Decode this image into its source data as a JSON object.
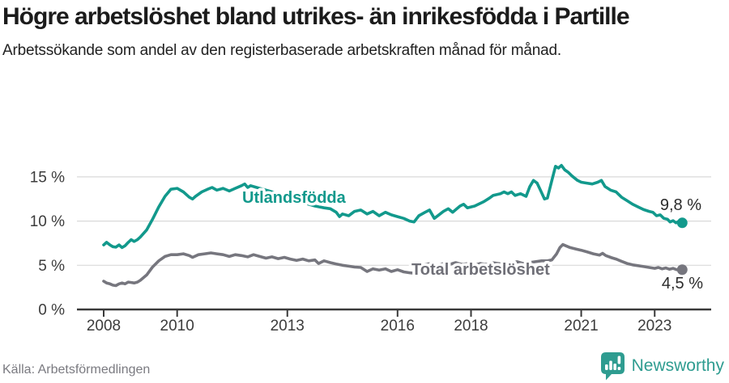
{
  "header": {
    "title": "Högre arbetslöshet bland utrikes- än inrikesfödda i Partille",
    "subtitle": "Arbetssökande som andel av den registerbaserade arbetskraften månad för månad."
  },
  "footer": {
    "source": "Källa: Arbetsförmedlingen",
    "brand_name": "Newsworthy"
  },
  "colors": {
    "accent_teal": "#12998c",
    "series_gray": "#76767e",
    "gray_label": "#6f6f77",
    "axis": "#3a3a3a",
    "grid": "#d9d9d9",
    "tick_text": "#3c3c3c",
    "value_text": "#2b2b2b",
    "brand_teal": "#2e9c90",
    "source_text": "#7a7a80"
  },
  "chart_data": {
    "type": "line",
    "title": "Högre arbetslöshet bland utrikes- än inrikesfödda i Partille",
    "subtitle": "Arbetssökande som andel av den registerbaserade arbetskraften månad för månad.",
    "xlabel": "",
    "ylabel": "",
    "ylim": [
      0,
      17
    ],
    "xlim": [
      2007.27,
      2024.54
    ],
    "grid": "horizontal",
    "legend_position": "inline-labels",
    "yticks": [
      {
        "value": 0,
        "label": "0 %"
      },
      {
        "value": 5,
        "label": "5 %"
      },
      {
        "value": 10,
        "label": "10 %"
      },
      {
        "value": 15,
        "label": "15 %"
      }
    ],
    "xticks": [
      {
        "value": 2008,
        "label": "2008"
      },
      {
        "value": 2010,
        "label": "2010"
      },
      {
        "value": 2013,
        "label": "2013"
      },
      {
        "value": 2016,
        "label": "2016"
      },
      {
        "value": 2018,
        "label": "2018"
      },
      {
        "value": 2021,
        "label": "2021"
      },
      {
        "value": 2023,
        "label": "2023"
      }
    ],
    "series": [
      {
        "name": "Utlandsfödda",
        "color": "#12998c",
        "label_color": "#12998c",
        "end_label": "9,8 %",
        "end_value": 9.8,
        "points": [
          [
            2008.0,
            7.3
          ],
          [
            2008.08,
            7.6
          ],
          [
            2008.17,
            7.3
          ],
          [
            2008.25,
            7.1
          ],
          [
            2008.33,
            7.05
          ],
          [
            2008.42,
            7.3
          ],
          [
            2008.5,
            7.0
          ],
          [
            2008.58,
            7.2
          ],
          [
            2008.67,
            7.6
          ],
          [
            2008.75,
            7.9
          ],
          [
            2008.83,
            7.7
          ],
          [
            2008.92,
            7.9
          ],
          [
            2009.0,
            8.2
          ],
          [
            2009.17,
            9.0
          ],
          [
            2009.33,
            10.2
          ],
          [
            2009.5,
            11.6
          ],
          [
            2009.67,
            12.8
          ],
          [
            2009.83,
            13.6
          ],
          [
            2010.0,
            13.7
          ],
          [
            2010.17,
            13.3
          ],
          [
            2010.33,
            12.7
          ],
          [
            2010.42,
            12.5
          ],
          [
            2010.5,
            12.8
          ],
          [
            2010.67,
            13.3
          ],
          [
            2010.83,
            13.6
          ],
          [
            2010.95,
            13.8
          ],
          [
            2011.08,
            13.5
          ],
          [
            2011.25,
            13.7
          ],
          [
            2011.42,
            13.4
          ],
          [
            2011.58,
            13.7
          ],
          [
            2011.75,
            14.0
          ],
          [
            2011.84,
            14.2
          ],
          [
            2011.92,
            13.8
          ],
          [
            2012.0,
            14.0
          ],
          [
            2012.25,
            13.7
          ],
          [
            2012.5,
            13.4
          ],
          [
            2012.75,
            13.1
          ],
          [
            2013.0,
            12.8
          ],
          [
            2013.25,
            12.4
          ],
          [
            2013.5,
            12.0
          ],
          [
            2013.75,
            11.7
          ],
          [
            2014.0,
            11.5
          ],
          [
            2014.17,
            11.4
          ],
          [
            2014.33,
            11.0
          ],
          [
            2014.42,
            10.5
          ],
          [
            2014.5,
            10.8
          ],
          [
            2014.67,
            10.6
          ],
          [
            2014.83,
            11.1
          ],
          [
            2015.0,
            11.25
          ],
          [
            2015.17,
            10.8
          ],
          [
            2015.33,
            11.1
          ],
          [
            2015.5,
            10.6
          ],
          [
            2015.67,
            11.0
          ],
          [
            2015.83,
            10.7
          ],
          [
            2016.0,
            10.5
          ],
          [
            2016.17,
            10.3
          ],
          [
            2016.33,
            10.0
          ],
          [
            2016.45,
            9.9
          ],
          [
            2016.58,
            10.6
          ],
          [
            2016.75,
            11.0
          ],
          [
            2016.87,
            11.25
          ],
          [
            2017.0,
            10.3
          ],
          [
            2017.25,
            11.1
          ],
          [
            2017.38,
            11.4
          ],
          [
            2017.5,
            11.0
          ],
          [
            2017.7,
            11.7
          ],
          [
            2017.8,
            11.9
          ],
          [
            2017.9,
            11.5
          ],
          [
            2018.1,
            11.7
          ],
          [
            2018.35,
            12.2
          ],
          [
            2018.5,
            12.6
          ],
          [
            2018.6,
            12.9
          ],
          [
            2018.8,
            13.1
          ],
          [
            2018.9,
            13.3
          ],
          [
            2019.0,
            13.1
          ],
          [
            2019.1,
            13.3
          ],
          [
            2019.2,
            12.9
          ],
          [
            2019.35,
            13.1
          ],
          [
            2019.5,
            12.8
          ],
          [
            2019.6,
            13.9
          ],
          [
            2019.7,
            14.6
          ],
          [
            2019.8,
            14.3
          ],
          [
            2019.9,
            13.4
          ],
          [
            2020.0,
            12.5
          ],
          [
            2020.08,
            12.6
          ],
          [
            2020.2,
            14.6
          ],
          [
            2020.3,
            16.2
          ],
          [
            2020.38,
            16.0
          ],
          [
            2020.46,
            16.3
          ],
          [
            2020.55,
            15.8
          ],
          [
            2020.65,
            15.5
          ],
          [
            2020.75,
            15.1
          ],
          [
            2020.9,
            14.6
          ],
          [
            2021.0,
            14.4
          ],
          [
            2021.15,
            14.3
          ],
          [
            2021.3,
            14.2
          ],
          [
            2021.45,
            14.4
          ],
          [
            2021.55,
            14.6
          ],
          [
            2021.65,
            13.9
          ],
          [
            2021.8,
            13.5
          ],
          [
            2021.95,
            13.3
          ],
          [
            2022.1,
            12.7
          ],
          [
            2022.25,
            12.3
          ],
          [
            2022.4,
            11.9
          ],
          [
            2022.55,
            11.6
          ],
          [
            2022.7,
            11.3
          ],
          [
            2022.85,
            11.1
          ],
          [
            2022.95,
            11.0
          ],
          [
            2023.05,
            10.6
          ],
          [
            2023.15,
            10.7
          ],
          [
            2023.25,
            10.3
          ],
          [
            2023.35,
            10.2
          ],
          [
            2023.42,
            9.9
          ],
          [
            2023.5,
            10.05
          ],
          [
            2023.58,
            9.8
          ],
          [
            2023.67,
            10.0
          ],
          [
            2023.75,
            9.8
          ]
        ]
      },
      {
        "name": "Total arbetslöshet",
        "color": "#76767e",
        "label_color": "#6f6f77",
        "end_label": "4,5 %",
        "end_value": 4.5,
        "points": [
          [
            2008.0,
            3.2
          ],
          [
            2008.08,
            3.0
          ],
          [
            2008.17,
            2.9
          ],
          [
            2008.25,
            2.75
          ],
          [
            2008.33,
            2.7
          ],
          [
            2008.42,
            2.9
          ],
          [
            2008.5,
            3.0
          ],
          [
            2008.58,
            2.9
          ],
          [
            2008.67,
            3.1
          ],
          [
            2008.75,
            3.05
          ],
          [
            2008.83,
            3.0
          ],
          [
            2008.92,
            3.1
          ],
          [
            2009.0,
            3.3
          ],
          [
            2009.17,
            3.9
          ],
          [
            2009.33,
            4.8
          ],
          [
            2009.5,
            5.5
          ],
          [
            2009.67,
            6.0
          ],
          [
            2009.83,
            6.2
          ],
          [
            2010.0,
            6.2
          ],
          [
            2010.17,
            6.3
          ],
          [
            2010.33,
            6.1
          ],
          [
            2010.42,
            5.9
          ],
          [
            2010.58,
            6.2
          ],
          [
            2010.75,
            6.3
          ],
          [
            2010.92,
            6.4
          ],
          [
            2011.08,
            6.3
          ],
          [
            2011.25,
            6.2
          ],
          [
            2011.42,
            6.0
          ],
          [
            2011.58,
            6.2
          ],
          [
            2011.75,
            6.1
          ],
          [
            2011.92,
            5.95
          ],
          [
            2012.08,
            6.2
          ],
          [
            2012.25,
            6.0
          ],
          [
            2012.42,
            5.8
          ],
          [
            2012.58,
            5.95
          ],
          [
            2012.75,
            5.75
          ],
          [
            2012.92,
            5.9
          ],
          [
            2013.08,
            5.7
          ],
          [
            2013.25,
            5.55
          ],
          [
            2013.42,
            5.7
          ],
          [
            2013.58,
            5.5
          ],
          [
            2013.75,
            5.6
          ],
          [
            2013.85,
            5.2
          ],
          [
            2014.0,
            5.5
          ],
          [
            2014.17,
            5.3
          ],
          [
            2014.33,
            5.15
          ],
          [
            2014.5,
            5.0
          ],
          [
            2014.67,
            4.9
          ],
          [
            2014.83,
            4.8
          ],
          [
            2015.0,
            4.75
          ],
          [
            2015.17,
            4.3
          ],
          [
            2015.33,
            4.6
          ],
          [
            2015.5,
            4.45
          ],
          [
            2015.67,
            4.6
          ],
          [
            2015.83,
            4.3
          ],
          [
            2016.0,
            4.5
          ],
          [
            2016.17,
            4.25
          ],
          [
            2016.33,
            4.15
          ],
          [
            2016.45,
            4.1
          ],
          [
            2016.6,
            4.6
          ],
          [
            2016.75,
            5.1
          ],
          [
            2016.92,
            5.2
          ],
          [
            2017.08,
            5.0
          ],
          [
            2017.25,
            5.2
          ],
          [
            2017.42,
            5.1
          ],
          [
            2017.58,
            5.3
          ],
          [
            2017.75,
            5.1
          ],
          [
            2017.92,
            5.2
          ],
          [
            2018.08,
            5.0
          ],
          [
            2018.25,
            5.2
          ],
          [
            2018.42,
            5.1
          ],
          [
            2018.58,
            5.3
          ],
          [
            2018.75,
            5.2
          ],
          [
            2018.92,
            5.1
          ],
          [
            2019.08,
            5.2
          ],
          [
            2019.25,
            5.4
          ],
          [
            2019.42,
            5.2
          ],
          [
            2019.58,
            5.3
          ],
          [
            2019.75,
            5.4
          ],
          [
            2019.92,
            5.5
          ],
          [
            2020.08,
            5.5
          ],
          [
            2020.2,
            5.6
          ],
          [
            2020.33,
            6.3
          ],
          [
            2020.42,
            7.0
          ],
          [
            2020.5,
            7.35
          ],
          [
            2020.58,
            7.2
          ],
          [
            2020.7,
            7.0
          ],
          [
            2020.85,
            6.85
          ],
          [
            2021.0,
            6.7
          ],
          [
            2021.17,
            6.5
          ],
          [
            2021.33,
            6.3
          ],
          [
            2021.5,
            6.15
          ],
          [
            2021.58,
            6.35
          ],
          [
            2021.67,
            6.1
          ],
          [
            2021.83,
            5.85
          ],
          [
            2021.95,
            5.7
          ],
          [
            2022.1,
            5.45
          ],
          [
            2022.25,
            5.2
          ],
          [
            2022.4,
            5.05
          ],
          [
            2022.55,
            4.95
          ],
          [
            2022.7,
            4.85
          ],
          [
            2022.85,
            4.75
          ],
          [
            2023.0,
            4.65
          ],
          [
            2023.1,
            4.75
          ],
          [
            2023.2,
            4.6
          ],
          [
            2023.3,
            4.7
          ],
          [
            2023.4,
            4.55
          ],
          [
            2023.5,
            4.65
          ],
          [
            2023.6,
            4.5
          ],
          [
            2023.68,
            4.6
          ],
          [
            2023.75,
            4.5
          ]
        ]
      }
    ]
  }
}
